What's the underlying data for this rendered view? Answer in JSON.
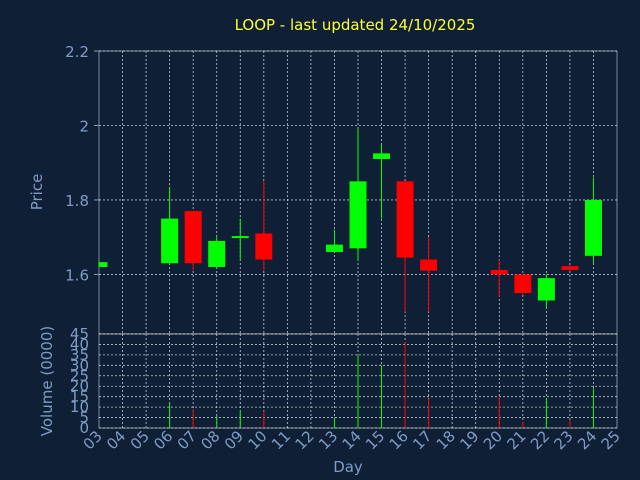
{
  "chart_data": {
    "type": "candlestick",
    "title": "LOOP - last updated 24/10/2025",
    "xlabel": "Day",
    "colors": {
      "background": "#0f1f35",
      "up": "#00ff00",
      "down": "#ff0000",
      "title": "#ffff33",
      "axis_text": "#7f9cc7",
      "grid": "#ffffff"
    },
    "x_ticks": [
      "03",
      "04",
      "05",
      "06",
      "07",
      "08",
      "09",
      "10",
      "11",
      "12",
      "13",
      "14",
      "15",
      "16",
      "17",
      "18",
      "19",
      "20",
      "21",
      "22",
      "23",
      "24",
      "25"
    ],
    "price_panel": {
      "ylabel": "Price",
      "ylim": [
        1.44,
        2.2
      ],
      "y_ticks": [
        "1.6",
        "1.8",
        "2",
        "2.2"
      ],
      "grid": true
    },
    "volume_panel": {
      "ylabel": "Volume (0000)",
      "ylim": [
        0,
        45
      ],
      "y_ticks": [
        "0",
        "5",
        "10",
        "15",
        "20",
        "25",
        "30",
        "35",
        "40",
        "45"
      ],
      "grid": true
    },
    "candles": [
      {
        "day": "03",
        "open": 1.62,
        "high": 1.635,
        "low": 1.62,
        "close": 1.633,
        "volume": 0
      },
      {
        "day": "06",
        "open": 1.63,
        "high": 1.835,
        "low": 1.63,
        "close": 1.75,
        "volume": 12
      },
      {
        "day": "07",
        "open": 1.77,
        "high": 1.77,
        "low": 1.61,
        "close": 1.63,
        "volume": 9
      },
      {
        "day": "08",
        "open": 1.62,
        "high": 1.7,
        "low": 1.62,
        "close": 1.69,
        "volume": 6
      },
      {
        "day": "09",
        "open": 1.7,
        "high": 1.75,
        "low": 1.64,
        "close": 1.703,
        "volume": 8
      },
      {
        "day": "10",
        "open": 1.71,
        "high": 1.85,
        "low": 1.61,
        "close": 1.64,
        "volume": 8
      },
      {
        "day": "13",
        "open": 1.66,
        "high": 1.72,
        "low": 1.66,
        "close": 1.68,
        "volume": 5
      },
      {
        "day": "14",
        "open": 1.67,
        "high": 1.99,
        "low": 1.64,
        "close": 1.85,
        "volume": 35
      },
      {
        "day": "15",
        "open": 1.91,
        "high": 1.95,
        "low": 1.75,
        "close": 1.925,
        "volume": 30
      },
      {
        "day": "16",
        "open": 1.85,
        "high": 1.85,
        "low": 1.5,
        "close": 1.645,
        "volume": 41
      },
      {
        "day": "17",
        "open": 1.64,
        "high": 1.7,
        "low": 1.5,
        "close": 1.61,
        "volume": 14
      },
      {
        "day": "20",
        "open": 1.612,
        "high": 1.64,
        "low": 1.54,
        "close": 1.6,
        "volume": 15
      },
      {
        "day": "21",
        "open": 1.6,
        "high": 1.6,
        "low": 1.545,
        "close": 1.55,
        "volume": 3
      },
      {
        "day": "22",
        "open": 1.53,
        "high": 1.6,
        "low": 1.51,
        "close": 1.59,
        "volume": 14
      },
      {
        "day": "23",
        "open": 1.622,
        "high": 1.625,
        "low": 1.61,
        "close": 1.612,
        "volume": 4
      },
      {
        "day": "24",
        "open": 1.65,
        "high": 1.86,
        "low": 1.63,
        "close": 1.8,
        "volume": 19
      }
    ]
  }
}
